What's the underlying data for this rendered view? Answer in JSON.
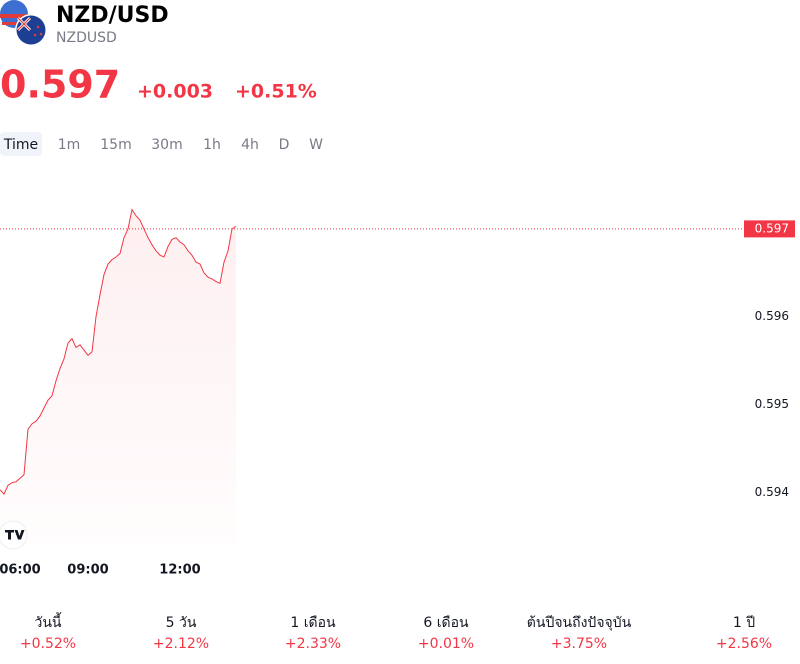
{
  "header": {
    "title": "NZD/USD",
    "symbol": "NZDUSD",
    "price": 0.597,
    "change": "+0.003",
    "change_percent": "+0.51%"
  },
  "timeframes": [
    "Time",
    "1m",
    "15m",
    "30m",
    "1h",
    "4h",
    "D",
    "W"
  ],
  "chart_data": {
    "type": "line",
    "color": "#f23645",
    "categories": [
      null,
      null,
      null,
      null,
      null,
      "06:00",
      null,
      null,
      null,
      null,
      null,
      null,
      null,
      null,
      null,
      null,
      null,
      null,
      null,
      null,
      null,
      null,
      "09:00",
      null,
      null,
      null,
      null,
      null,
      null,
      null,
      null,
      null,
      null,
      null,
      null,
      null,
      null,
      null,
      null,
      null,
      null,
      null,
      null,
      null,
      null,
      "12:00",
      null,
      null,
      null,
      null,
      null,
      null,
      null,
      null,
      null,
      null,
      null,
      null,
      null,
      null
    ],
    "values": [
      0.59403,
      0.59398,
      0.59408,
      0.59411,
      0.59412,
      0.59416,
      0.5942,
      0.59472,
      0.59478,
      0.59481,
      0.59487,
      0.59496,
      0.59505,
      0.5951,
      0.59527,
      0.59541,
      0.59552,
      0.5957,
      0.59575,
      0.59565,
      0.59568,
      0.59562,
      0.59556,
      0.5956,
      0.596,
      0.59625,
      0.59648,
      0.5966,
      0.59665,
      0.59668,
      0.59672,
      0.5969,
      0.597,
      0.59722,
      0.59715,
      0.5971,
      0.597,
      0.5969,
      0.59682,
      0.59675,
      0.5967,
      0.59668,
      0.5968,
      0.59688,
      0.5969,
      0.59685,
      0.59682,
      0.59675,
      0.5967,
      0.59662,
      0.5966,
      0.5965,
      0.59645,
      0.59643,
      0.5964,
      0.59638,
      0.59662,
      0.59675,
      0.597,
      0.59703
    ],
    "ylim": [
      0.5934,
      0.5975
    ],
    "yticks": [
      0.594,
      0.595,
      0.596
    ],
    "price_line": 0.597
  },
  "performance": [
    {
      "label": "วันนี้",
      "value": "+0.52%"
    },
    {
      "label": "5 วัน",
      "value": "+2.12%"
    },
    {
      "label": "1 เดือน",
      "value": "+2.33%"
    },
    {
      "label": "6 เดือน",
      "value": "+0.01%"
    },
    {
      "label": "ต้นปีจนถึงปัจจุบัน",
      "value": "+3.75%"
    },
    {
      "label": "1 ปี",
      "value": "+2.56%"
    }
  ]
}
